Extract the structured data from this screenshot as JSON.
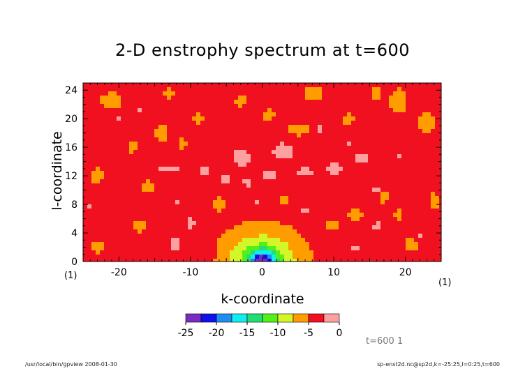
{
  "chart_data": {
    "type": "heatmap",
    "title": "2-D enstrophy spectrum at t=600",
    "xlabel": "k-coordinate",
    "ylabel": "l-coordinate",
    "x_unit": "(1)",
    "y_unit": "(1)",
    "xlim": [
      -25,
      25
    ],
    "ylim": [
      0,
      25
    ],
    "x_ticks": [
      -20,
      -10,
      0,
      10,
      20
    ],
    "y_ticks": [
      0,
      4,
      8,
      12,
      16,
      20,
      24
    ],
    "background_level": -4.0,
    "features": [
      {
        "k": 0,
        "l": 0,
        "sx": 5.0,
        "sy": 4.0,
        "amp": -8.0
      },
      {
        "k": 0,
        "l": 0,
        "sx": 1.6,
        "sy": 1.4,
        "amp": -14.0
      },
      {
        "k": -12,
        "l": 2.5,
        "sx": 1.0,
        "sy": 1.5,
        "amp": 2.6
      },
      {
        "k": -10,
        "l": 5.5,
        "sx": 1.0,
        "sy": 1.2,
        "amp": 2.2
      },
      {
        "k": -3,
        "l": 14.5,
        "sx": 1.6,
        "sy": 1.4,
        "amp": 2.6
      },
      {
        "k": 3,
        "l": 15.5,
        "sx": 2.0,
        "sy": 1.4,
        "amp": 2.6
      },
      {
        "k": 1,
        "l": 12.0,
        "sx": 1.4,
        "sy": 1.0,
        "amp": 2.2
      },
      {
        "k": -5,
        "l": 11.5,
        "sx": 1.2,
        "sy": 1.0,
        "amp": 2.2
      },
      {
        "k": -13,
        "l": 13.0,
        "sx": 2.0,
        "sy": 0.9,
        "amp": 2.2
      },
      {
        "k": -8,
        "l": 12.5,
        "sx": 1.2,
        "sy": 1.0,
        "amp": 2.2
      },
      {
        "k": 6,
        "l": 12.5,
        "sx": 1.6,
        "sy": 1.0,
        "amp": 2.2
      },
      {
        "k": 10,
        "l": 13.0,
        "sx": 1.6,
        "sy": 1.0,
        "amp": 2.4
      },
      {
        "k": 14,
        "l": 14.5,
        "sx": 1.2,
        "sy": 1.2,
        "amp": 2.4
      },
      {
        "k": 8,
        "l": 18.5,
        "sx": 0.8,
        "sy": 0.9,
        "amp": 2.0
      },
      {
        "k": -2,
        "l": 11.0,
        "sx": 1.2,
        "sy": 0.8,
        "amp": 2.0
      },
      {
        "k": -20,
        "l": 20.0,
        "sx": 0.8,
        "sy": 0.8,
        "amp": 2.0
      },
      {
        "k": -17,
        "l": 21.0,
        "sx": 0.8,
        "sy": 0.7,
        "amp": 2.0
      },
      {
        "k": 6,
        "l": 7.0,
        "sx": 1.2,
        "sy": 0.9,
        "amp": 2.2
      },
      {
        "k": 13,
        "l": 2.0,
        "sx": 0.9,
        "sy": 0.8,
        "amp": 2.0
      },
      {
        "k": -1,
        "l": 8.5,
        "sx": 0.8,
        "sy": 0.7,
        "amp": 2.0
      },
      {
        "k": 16,
        "l": 5.0,
        "sx": 1.0,
        "sy": 0.8,
        "amp": 2.0
      },
      {
        "k": -4,
        "l": 6.0,
        "sx": 0.8,
        "sy": 0.7,
        "amp": 1.8
      },
      {
        "k": -24,
        "l": 7.5,
        "sx": 0.8,
        "sy": 0.8,
        "amp": 1.8
      },
      {
        "k": 16,
        "l": 10.0,
        "sx": 0.9,
        "sy": 0.8,
        "amp": 1.9
      },
      {
        "k": 22,
        "l": 3.5,
        "sx": 0.8,
        "sy": 0.8,
        "amp": 1.8
      },
      {
        "k": -12,
        "l": 8.5,
        "sx": 0.8,
        "sy": 0.7,
        "amp": 1.8
      },
      {
        "k": 19,
        "l": 14.5,
        "sx": 0.9,
        "sy": 0.7,
        "amp": 1.8
      },
      {
        "k": 12,
        "l": 16.5,
        "sx": 0.8,
        "sy": 0.7,
        "amp": 1.8
      },
      {
        "k": -7,
        "l": 1.5,
        "sx": 0.8,
        "sy": 0.8,
        "amp": 1.8
      },
      {
        "k": -21,
        "l": 22.5,
        "sx": 1.4,
        "sy": 1.1,
        "amp": -3.2
      },
      {
        "k": 7,
        "l": 23.5,
        "sx": 1.2,
        "sy": 1.0,
        "amp": -3.2
      },
      {
        "k": 19,
        "l": 22.5,
        "sx": 1.2,
        "sy": 1.6,
        "amp": -3.0
      },
      {
        "k": 23,
        "l": 19.5,
        "sx": 1.0,
        "sy": 1.6,
        "amp": -2.8
      },
      {
        "k": -14,
        "l": 18.0,
        "sx": 0.9,
        "sy": 1.2,
        "amp": -3.2
      },
      {
        "k": -6,
        "l": 8.0,
        "sx": 0.9,
        "sy": 0.9,
        "amp": -3.2
      },
      {
        "k": 5,
        "l": 18.5,
        "sx": 1.4,
        "sy": 0.9,
        "amp": -2.8
      },
      {
        "k": 13,
        "l": 6.5,
        "sx": 0.9,
        "sy": 0.9,
        "amp": -3.2
      },
      {
        "k": 21,
        "l": 2.5,
        "sx": 0.9,
        "sy": 0.9,
        "amp": -3.0
      },
      {
        "k": -23,
        "l": 12.0,
        "sx": 0.8,
        "sy": 1.2,
        "amp": -2.6
      },
      {
        "k": -16,
        "l": 10.5,
        "sx": 1.0,
        "sy": 0.8,
        "amp": -2.6
      },
      {
        "k": -17,
        "l": 5.0,
        "sx": 0.9,
        "sy": 0.9,
        "amp": -2.6
      },
      {
        "k": -23,
        "l": 2.0,
        "sx": 0.8,
        "sy": 0.9,
        "amp": -2.6
      },
      {
        "k": 10,
        "l": 5.0,
        "sx": 0.9,
        "sy": 0.8,
        "amp": -2.6
      },
      {
        "k": 17,
        "l": 9.0,
        "sx": 0.9,
        "sy": 0.8,
        "amp": -2.6
      },
      {
        "k": 24,
        "l": 8.5,
        "sx": 0.7,
        "sy": 1.2,
        "amp": -2.6
      },
      {
        "k": -9,
        "l": 20.0,
        "sx": 0.8,
        "sy": 0.8,
        "amp": -2.4
      },
      {
        "k": -3,
        "l": 22.5,
        "sx": 0.8,
        "sy": 0.8,
        "amp": -2.4
      },
      {
        "k": 1,
        "l": 20.5,
        "sx": 0.8,
        "sy": 0.8,
        "amp": -2.4
      },
      {
        "k": 12,
        "l": 20.0,
        "sx": 0.8,
        "sy": 0.8,
        "amp": -2.4
      },
      {
        "k": -18,
        "l": 16.0,
        "sx": 0.7,
        "sy": 0.8,
        "amp": -2.4
      },
      {
        "k": 16,
        "l": 23.5,
        "sx": 0.8,
        "sy": 0.8,
        "amp": -2.4
      },
      {
        "k": 3,
        "l": 8.5,
        "sx": 0.7,
        "sy": 0.7,
        "amp": -2.2
      },
      {
        "k": -11,
        "l": 16.5,
        "sx": 0.6,
        "sy": 0.8,
        "amp": -2.2
      },
      {
        "k": 19,
        "l": 6.5,
        "sx": 0.7,
        "sy": 0.8,
        "amp": -2.2
      },
      {
        "k": -13,
        "l": 23.5,
        "sx": 0.8,
        "sy": 0.7,
        "amp": -2.2
      }
    ],
    "colorbar": {
      "levels": [
        -25,
        -22.5,
        -20,
        -17.5,
        -15,
        -12.5,
        -10,
        -7.5,
        -5,
        -2.5,
        0
      ],
      "tick_values": [
        -25,
        -20,
        -15,
        -10,
        -5,
        0
      ],
      "tick_labels": [
        "-25",
        "-20",
        "-15",
        "-10",
        "-5",
        "0"
      ],
      "colors": [
        "#7b2cc0",
        "#1010e8",
        "#1e8cf0",
        "#10eef0",
        "#22dd74",
        "#50f018",
        "#d2f628",
        "#ff9c00",
        "#f01020",
        "#fca0a0"
      ]
    }
  },
  "annotations": {
    "time_label": "t=600 1",
    "footer_left": "/usr/local/bin/gpview  2008-01-30",
    "footer_right": "sp-enst2d.nc@sp2d,k=-25:25,l=0:25,t=600"
  }
}
